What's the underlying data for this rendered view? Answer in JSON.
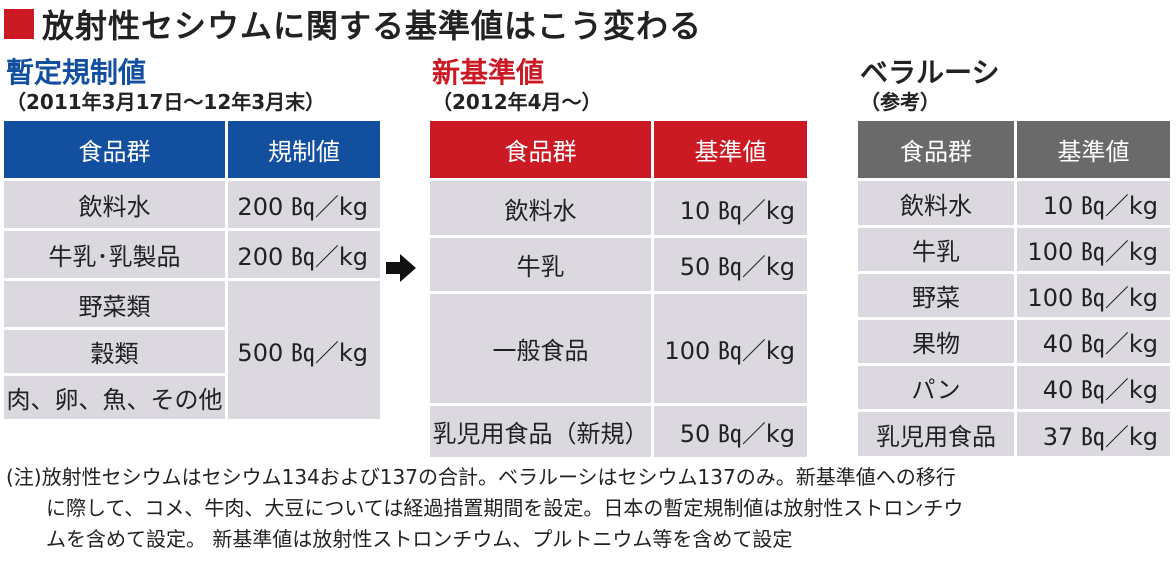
{
  "title": "放射性セシウムに関する基準値はこう変わる",
  "colors": {
    "accent_red": "#cc1a24",
    "blue": "#124f9e",
    "gray": "#6a6a6a",
    "cell_bg": "#dbd8df"
  },
  "provisional": {
    "heading": "暫定規制値",
    "period": "（2011年3月17日〜12年3月末）",
    "col_food": "食品群",
    "col_value": "規制値",
    "rows": [
      {
        "name": "飲料水",
        "value": "200 ㏃／kg"
      },
      {
        "name": "牛乳･乳製品",
        "value": "200 ㏃／kg"
      }
    ],
    "merged_names": [
      "野菜類",
      "穀類",
      "肉、卵、魚、その他"
    ],
    "merged_value": "500 ㏃／kg"
  },
  "new_standard": {
    "heading": "新基準値",
    "period": "（2012年4月〜）",
    "col_food": "食品群",
    "col_value": "基準値",
    "rows": [
      {
        "name": "飲料水",
        "value": "10 ㏃／kg"
      },
      {
        "name": "牛乳",
        "value": "50 ㏃／kg"
      },
      {
        "name": "一般食品",
        "value": "100 ㏃／kg"
      },
      {
        "name": "乳児用食品（新規）",
        "value": "50 ㏃／kg"
      }
    ]
  },
  "belarus": {
    "heading": "ベラルーシ",
    "note": "（参考）",
    "col_food": "食品群",
    "col_value": "基準値",
    "rows": [
      {
        "name": "飲料水",
        "value": "10 ㏃／kg"
      },
      {
        "name": "牛乳",
        "value": "100 ㏃／kg"
      },
      {
        "name": "野菜",
        "value": "100 ㏃／kg"
      },
      {
        "name": "果物",
        "value": "40 ㏃／kg"
      },
      {
        "name": "パン",
        "value": "40 ㏃／kg"
      },
      {
        "name": "乳児用食品",
        "value": "37 ㏃／kg"
      }
    ]
  },
  "arrow_icon": "arrow-right-icon",
  "footnote": {
    "line1": "(注)放射性セシウムはセシウム134および137の合計。ベラルーシはセシウム137のみ。新基準値への移行",
    "line2": "に際して、コメ、牛肉、大豆については経過措置期間を設定。日本の暫定規制値は放射性ストロンチウ",
    "line3": "ムを含めて設定。 新基準値は放射性ストロンチウム、プルトニウム等を含めて設定"
  }
}
